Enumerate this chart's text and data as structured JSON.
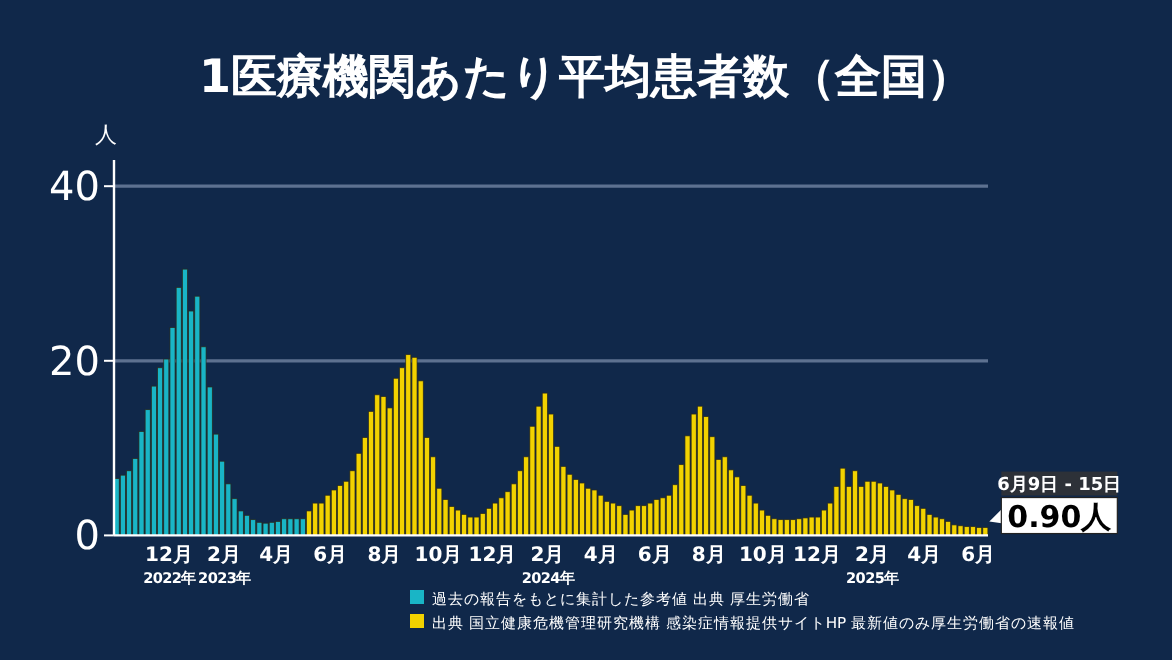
{
  "chart_data": {
    "type": "bar",
    "title": "1医療機関あたり平均患者数（全国）",
    "ylabel": "人",
    "xlim": [
      "2022-09-30",
      "2025-06-12"
    ],
    "ylim": [
      0,
      43
    ],
    "yticks": [
      0,
      20,
      40
    ],
    "xticks": [
      {
        "value": "2022-12-01",
        "label": "12月\n2022年"
      },
      {
        "value": "2023-02-01",
        "label": "2月\n2023年"
      },
      {
        "value": "2023-04-01",
        "label": "4月"
      },
      {
        "value": "2023-06-01",
        "label": "6月"
      },
      {
        "value": "2023-08-01",
        "label": "8月"
      },
      {
        "value": "2023-10-01",
        "label": "10月"
      },
      {
        "value": "2023-12-01",
        "label": "12月"
      },
      {
        "value": "2024-02-01",
        "label": "2月\n2024年"
      },
      {
        "value": "2024-04-01",
        "label": "4月"
      },
      {
        "value": "2024-06-01",
        "label": "6月"
      },
      {
        "value": "2024-08-01",
        "label": "8月"
      },
      {
        "value": "2024-10-01",
        "label": "10月"
      },
      {
        "value": "2024-12-01",
        "label": "12月"
      },
      {
        "value": "2025-02-01",
        "label": "2月\n2025年"
      },
      {
        "value": "2025-04-01",
        "label": "4月"
      },
      {
        "value": "2025-06-01",
        "label": "6月"
      }
    ],
    "grid": "y",
    "legend": "bottom",
    "series": [
      {
        "name": "過去の報告をもとに集計した参考値 出典 厚生労働省",
        "color": "#19b5c6",
        "x": [
          "2022-10-03",
          "2022-10-10",
          "2022-10-17",
          "2022-10-24",
          "2022-10-31",
          "2022-11-07",
          "2022-11-14",
          "2022-11-21",
          "2022-11-28",
          "2022-12-05",
          "2022-12-12",
          "2022-12-19",
          "2022-12-26",
          "2023-01-02",
          "2023-01-09",
          "2023-01-16",
          "2023-01-23",
          "2023-01-30",
          "2023-02-06",
          "2023-02-13",
          "2023-02-20",
          "2023-02-27",
          "2023-03-06",
          "2023-03-13",
          "2023-03-20",
          "2023-03-27",
          "2023-04-03",
          "2023-04-10",
          "2023-04-17",
          "2023-04-24",
          "2023-05-01"
        ],
        "values": [
          6.5,
          6.9,
          7.4,
          8.8,
          11.9,
          14.4,
          17.1,
          19.2,
          20.2,
          23.8,
          28.4,
          30.5,
          25.7,
          27.4,
          21.6,
          17.0,
          11.6,
          8.5,
          5.9,
          4.2,
          2.8,
          2.3,
          1.8,
          1.5,
          1.4,
          1.5,
          1.6,
          1.9,
          1.9,
          1.9,
          1.9
        ]
      },
      {
        "name": "出典 国立健康危機管理研究機構 感染症情報提供サイトHP 最新値のみ厚生労働省の速報値",
        "color": "#f2d200",
        "x": [
          "2023-05-08",
          "2023-05-15",
          "2023-05-22",
          "2023-05-29",
          "2023-06-05",
          "2023-06-12",
          "2023-06-19",
          "2023-06-26",
          "2023-07-03",
          "2023-07-10",
          "2023-07-17",
          "2023-07-24",
          "2023-07-31",
          "2023-08-07",
          "2023-08-14",
          "2023-08-21",
          "2023-08-28",
          "2023-09-04",
          "2023-09-11",
          "2023-09-18",
          "2023-09-25",
          "2023-10-02",
          "2023-10-09",
          "2023-10-16",
          "2023-10-23",
          "2023-10-30",
          "2023-11-06",
          "2023-11-13",
          "2023-11-20",
          "2023-11-27",
          "2023-12-04",
          "2023-12-11",
          "2023-12-18",
          "2023-12-25",
          "2024-01-01",
          "2024-01-08",
          "2024-01-15",
          "2024-01-22",
          "2024-01-29",
          "2024-02-05",
          "2024-02-12",
          "2024-02-19",
          "2024-02-26",
          "2024-03-04",
          "2024-03-11",
          "2024-03-18",
          "2024-03-25",
          "2024-04-01",
          "2024-04-08",
          "2024-04-15",
          "2024-04-22",
          "2024-04-29",
          "2024-05-06",
          "2024-05-13",
          "2024-05-20",
          "2024-05-27",
          "2024-06-03",
          "2024-06-10",
          "2024-06-17",
          "2024-06-24",
          "2024-07-01",
          "2024-07-08",
          "2024-07-15",
          "2024-07-22",
          "2024-07-29",
          "2024-08-05",
          "2024-08-12",
          "2024-08-19",
          "2024-08-26",
          "2024-09-02",
          "2024-09-09",
          "2024-09-16",
          "2024-09-23",
          "2024-09-30",
          "2024-10-07",
          "2024-10-14",
          "2024-10-21",
          "2024-10-28",
          "2024-11-04",
          "2024-11-11",
          "2024-11-18",
          "2024-11-25",
          "2024-12-02",
          "2024-12-09",
          "2024-12-16",
          "2024-12-23",
          "2024-12-30",
          "2025-01-06",
          "2025-01-13",
          "2025-01-20",
          "2025-01-27",
          "2025-02-03",
          "2025-02-10",
          "2025-02-17",
          "2025-02-24",
          "2025-03-03",
          "2025-03-10",
          "2025-03-17",
          "2025-03-24",
          "2025-03-31",
          "2025-04-07",
          "2025-04-14",
          "2025-04-21",
          "2025-04-28",
          "2025-05-05",
          "2025-05-12",
          "2025-05-19",
          "2025-05-26",
          "2025-06-02",
          "2025-06-09"
        ],
        "values": [
          2.8,
          3.7,
          3.7,
          4.6,
          5.2,
          5.7,
          6.2,
          7.4,
          9.4,
          11.2,
          14.2,
          16.1,
          15.9,
          14.6,
          18.0,
          19.2,
          20.7,
          20.4,
          17.7,
          11.2,
          9.0,
          5.4,
          4.1,
          3.3,
          2.9,
          2.4,
          2.1,
          2.1,
          2.5,
          3.1,
          3.7,
          4.3,
          5.0,
          5.9,
          7.4,
          9.0,
          12.5,
          14.8,
          16.3,
          13.9,
          10.2,
          7.9,
          7.0,
          6.4,
          6.0,
          5.4,
          5.2,
          4.6,
          3.9,
          3.7,
          3.4,
          2.4,
          2.9,
          3.4,
          3.4,
          3.7,
          4.1,
          4.3,
          4.6,
          5.8,
          8.1,
          11.4,
          13.9,
          14.8,
          13.6,
          11.3,
          8.7,
          9.0,
          7.5,
          6.7,
          5.7,
          4.6,
          3.7,
          2.9,
          2.3,
          1.9,
          1.8,
          1.8,
          1.8,
          1.9,
          2.0,
          2.1,
          2.1,
          2.9,
          3.7,
          5.6,
          7.7,
          5.6,
          7.4,
          5.6,
          6.2,
          6.2,
          6.0,
          5.6,
          5.2,
          4.7,
          4.2,
          4.1,
          3.4,
          3.1,
          2.4,
          2.1,
          1.9,
          1.6,
          1.2,
          1.1,
          1.0,
          1.0,
          0.9,
          0.9
        ]
      }
    ],
    "annotations": [
      {
        "text": "6月9日 - 15日",
        "x": "2025-06-09",
        "y": 0.9
      },
      {
        "text": "0.90人",
        "x": "2025-06-09",
        "y": 0.9
      }
    ]
  }
}
